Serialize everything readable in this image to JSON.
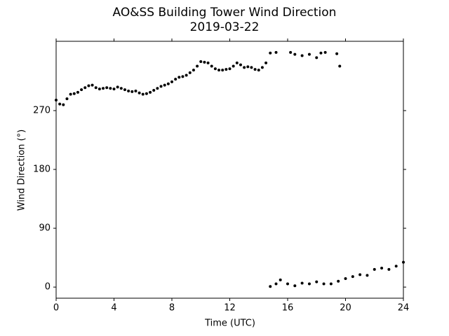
{
  "chart_data": {
    "type": "scatter",
    "title": "AO&SS Building Tower Wind Direction",
    "subtitle": "2019-03-22",
    "x_label": "Time (UTC)",
    "y_label": "Wind Direction (°)",
    "color": "#000000",
    "xlim": [
      0,
      24
    ],
    "xticks": [
      0,
      4,
      8,
      12,
      16,
      20,
      24
    ],
    "ylim": [
      -17,
      376
    ],
    "yticks": [
      0,
      90,
      180,
      270
    ],
    "x": [
      0,
      0.25,
      0.5,
      0.75,
      1,
      1.25,
      1.5,
      1.75,
      2,
      2.25,
      2.5,
      2.75,
      3,
      3.25,
      3.5,
      3.75,
      4,
      4.25,
      4.5,
      4.75,
      5,
      5.25,
      5.5,
      5.75,
      6,
      6.25,
      6.5,
      6.75,
      7,
      7.25,
      7.5,
      7.75,
      8,
      8.25,
      8.5,
      8.75,
      9,
      9.25,
      9.5,
      9.75,
      10,
      10.25,
      10.5,
      10.75,
      11,
      11.25,
      11.5,
      11.75,
      12,
      12.25,
      12.5,
      12.75,
      13,
      13.25,
      13.5,
      13.75,
      14,
      14.25,
      14.5,
      14.8,
      15.2,
      16.2,
      16.5,
      17,
      17.5,
      18,
      18.3,
      18.6,
      19.4,
      19.6,
      14.8,
      15.2,
      15.5,
      16,
      16.5,
      17,
      17.5,
      18,
      18.5,
      19,
      19.5,
      20,
      20.5,
      21,
      21.5,
      22,
      22.5,
      23,
      23.5,
      24
    ],
    "values": [
      286,
      280,
      279,
      288,
      295,
      296,
      298,
      302,
      305,
      308,
      309,
      305,
      303,
      304,
      305,
      304,
      303,
      306,
      304,
      302,
      300,
      299,
      300,
      297,
      295,
      296,
      298,
      301,
      304,
      307,
      309,
      311,
      314,
      318,
      321,
      322,
      324,
      328,
      332,
      338,
      345,
      344,
      343,
      338,
      334,
      332,
      332,
      333,
      334,
      338,
      343,
      340,
      336,
      337,
      336,
      333,
      332,
      336,
      343,
      358,
      359,
      359,
      356,
      354,
      356,
      351,
      358,
      359,
      357,
      338,
      1,
      5,
      11,
      5,
      2,
      6,
      5,
      8,
      5,
      5,
      9,
      13,
      16,
      19,
      18,
      27,
      29,
      27,
      32,
      38
    ]
  }
}
